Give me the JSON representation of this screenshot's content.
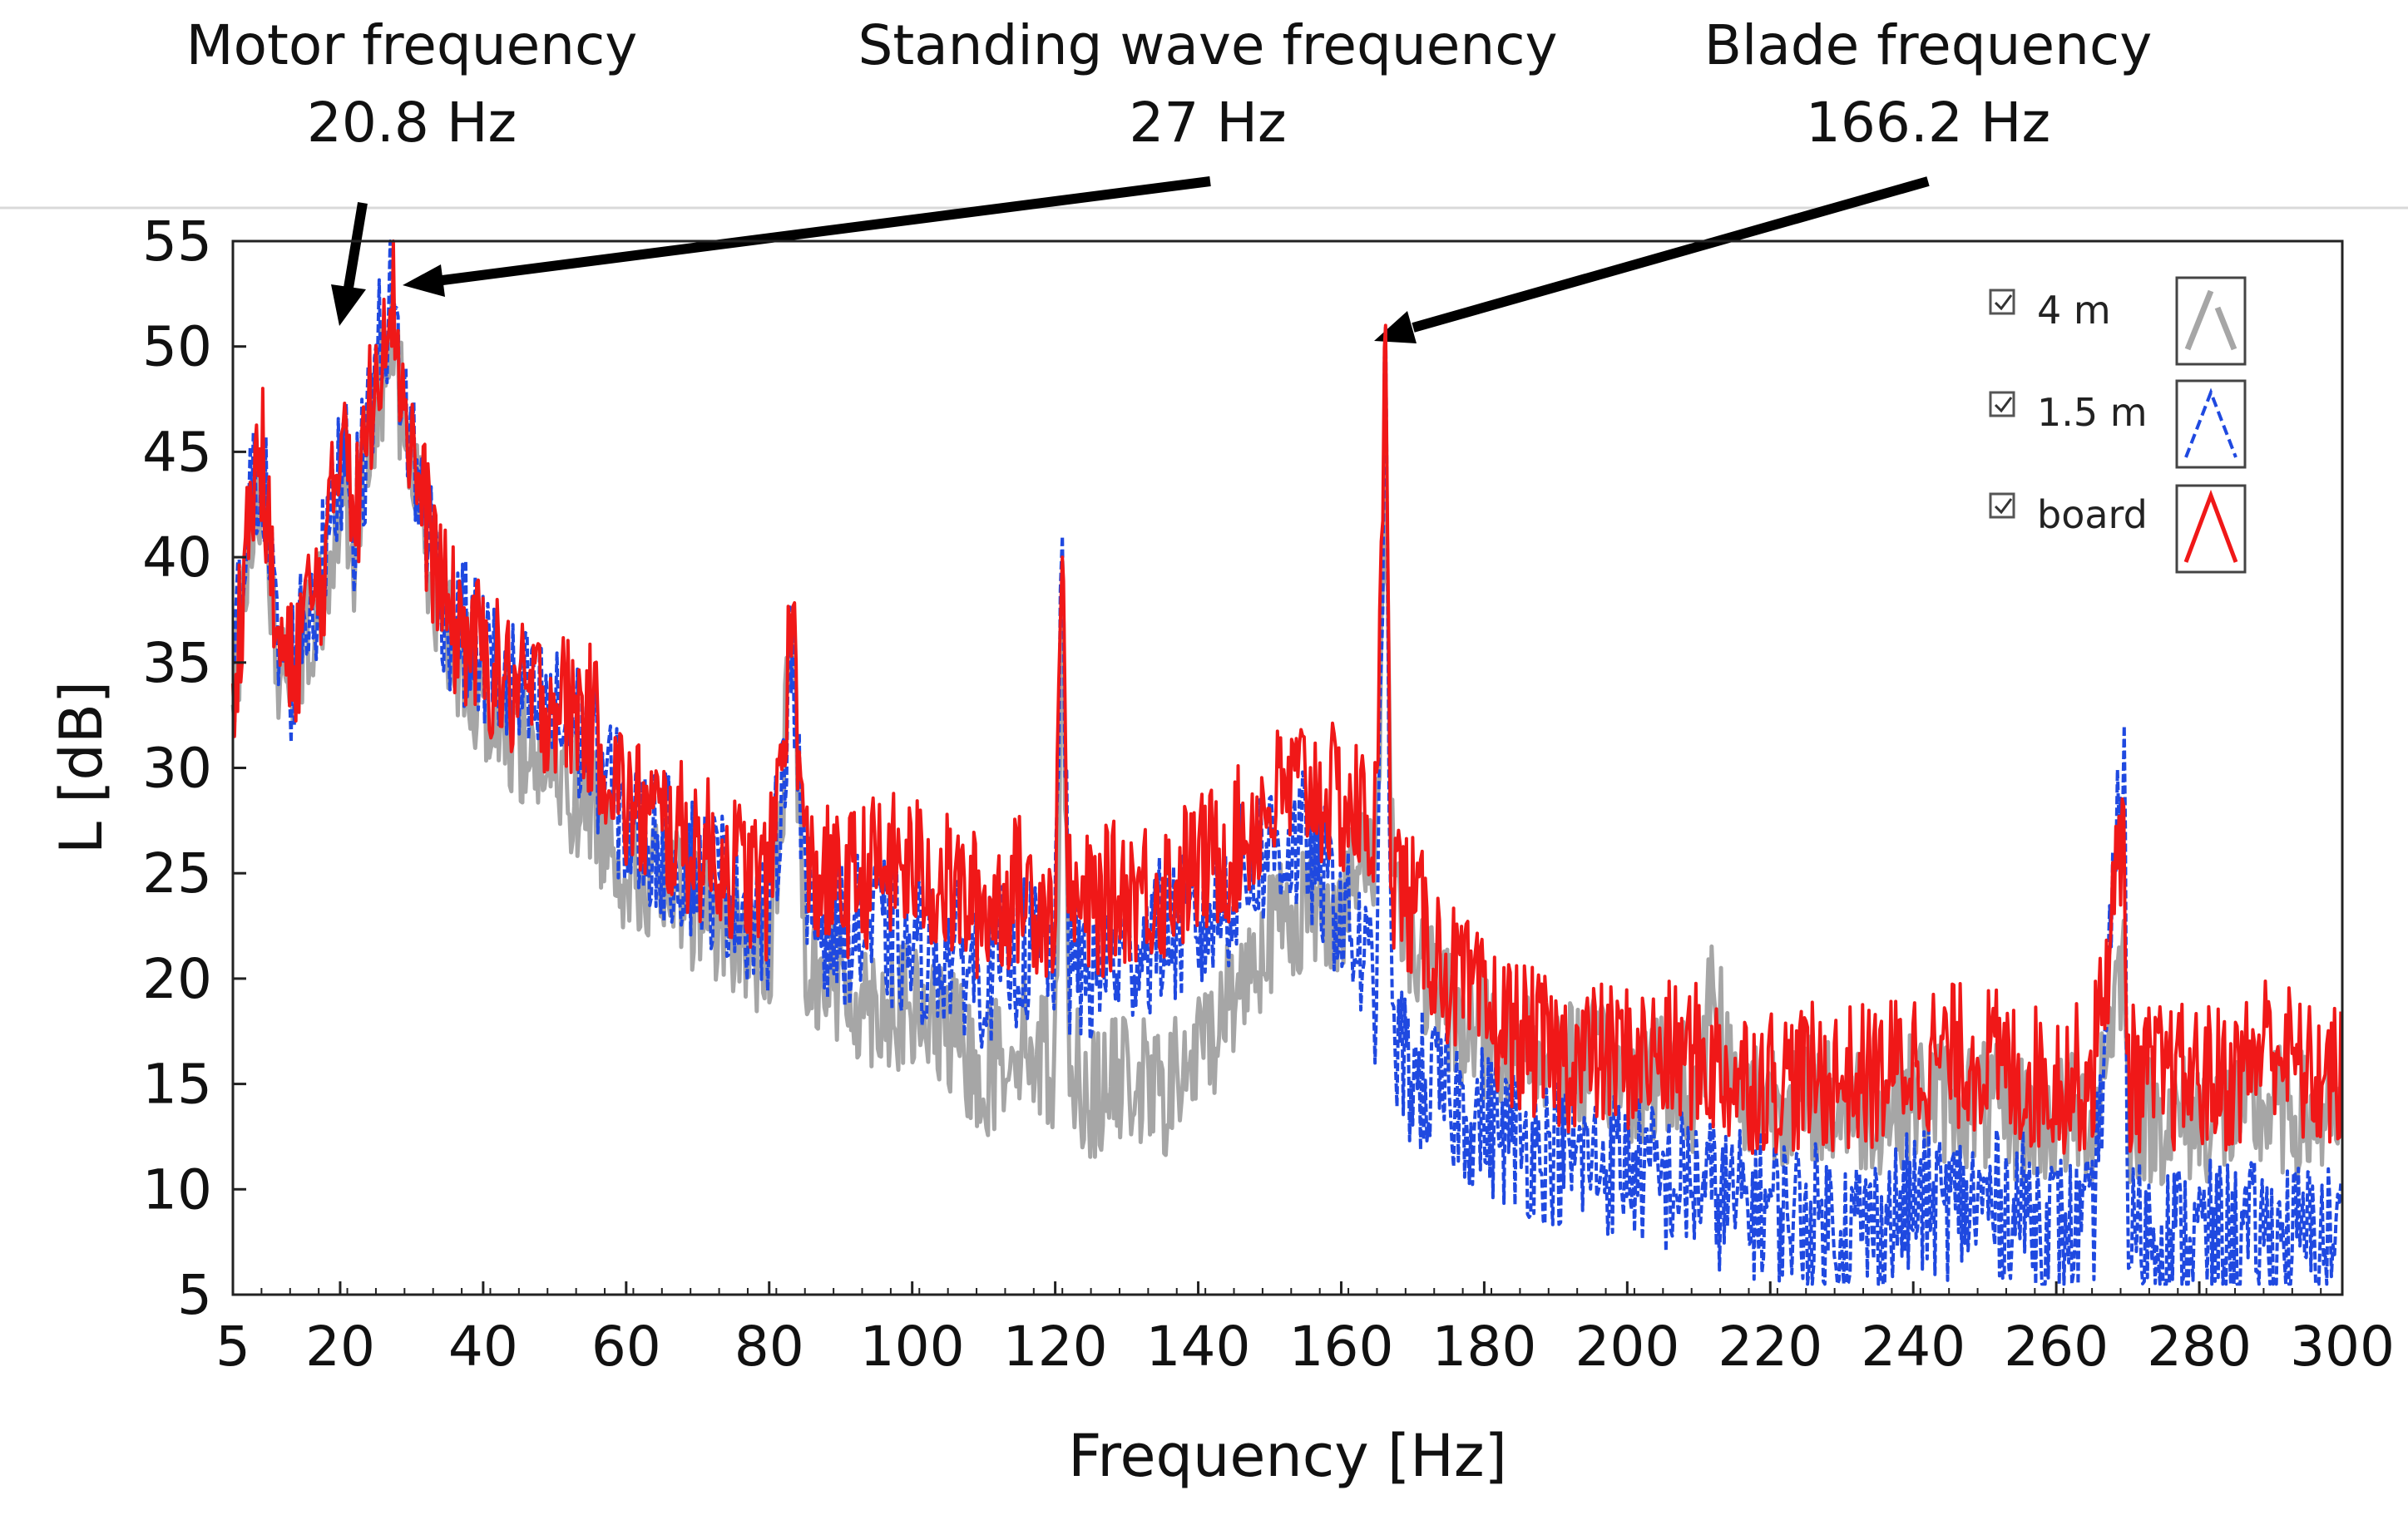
{
  "chart_data": {
    "type": "line",
    "title": "",
    "xlabel": "Frequency [Hz]",
    "ylabel": "L [dB]",
    "xlim": [
      5,
      300
    ],
    "ylim": [
      5,
      55
    ],
    "x_ticks": [
      5,
      20,
      40,
      60,
      80,
      100,
      120,
      140,
      160,
      180,
      200,
      220,
      240,
      260,
      280,
      300
    ],
    "y_ticks": [
      5,
      10,
      15,
      20,
      25,
      30,
      35,
      40,
      45,
      50,
      55
    ],
    "grid": false,
    "legend_position": "top-right",
    "series": [
      {
        "name": "4 m",
        "color": "#a6a6a6",
        "style": "solid",
        "points": [
          [
            5,
            33
          ],
          [
            7,
            41
          ],
          [
            9,
            45
          ],
          [
            11,
            36
          ],
          [
            13,
            34
          ],
          [
            15,
            37
          ],
          [
            17,
            38
          ],
          [
            19,
            42
          ],
          [
            20.8,
            44
          ],
          [
            22,
            41
          ],
          [
            25,
            48
          ],
          [
            27,
            51
          ],
          [
            29,
            47
          ],
          [
            31,
            43
          ],
          [
            35,
            37
          ],
          [
            40,
            34
          ],
          [
            45,
            32
          ],
          [
            50,
            30
          ],
          [
            55,
            29
          ],
          [
            60,
            26
          ],
          [
            65,
            25
          ],
          [
            70,
            24
          ],
          [
            75,
            23
          ],
          [
            80,
            21
          ],
          [
            83.3,
            37
          ],
          [
            85,
            22
          ],
          [
            90,
            20
          ],
          [
            95,
            19.5
          ],
          [
            100,
            19
          ],
          [
            105,
            18
          ],
          [
            110,
            16
          ],
          [
            115,
            18
          ],
          [
            120,
            16.5
          ],
          [
            121,
            38
          ],
          [
            122,
            17
          ],
          [
            125,
            15
          ],
          [
            130,
            16
          ],
          [
            135,
            15
          ],
          [
            140,
            17
          ],
          [
            145,
            20
          ],
          [
            150,
            23
          ],
          [
            155,
            24
          ],
          [
            160,
            24
          ],
          [
            165,
            27
          ],
          [
            166.2,
            45
          ],
          [
            167,
            27
          ],
          [
            170,
            22
          ],
          [
            175,
            19
          ],
          [
            180,
            18
          ],
          [
            185,
            17.5
          ],
          [
            190,
            17
          ],
          [
            195,
            16.5
          ],
          [
            200,
            16
          ],
          [
            205,
            16
          ],
          [
            210,
            15.5
          ],
          [
            212,
            21
          ],
          [
            215,
            15
          ],
          [
            220,
            15
          ],
          [
            225,
            15
          ],
          [
            230,
            14.5
          ],
          [
            235,
            14.5
          ],
          [
            240,
            15
          ],
          [
            245,
            15
          ],
          [
            250,
            14.5
          ],
          [
            255,
            14
          ],
          [
            260,
            14
          ],
          [
            265,
            14
          ],
          [
            269.5,
            22
          ],
          [
            270,
            14
          ],
          [
            275,
            14
          ],
          [
            280,
            14
          ],
          [
            285,
            14
          ],
          [
            290,
            14.5
          ],
          [
            295,
            14
          ],
          [
            300,
            14
          ]
        ]
      },
      {
        "name": "1.5 m",
        "color": "#1f49e0",
        "style": "dashed",
        "points": [
          [
            5,
            35
          ],
          [
            7,
            42
          ],
          [
            9,
            46
          ],
          [
            11,
            37
          ],
          [
            13,
            35
          ],
          [
            15,
            38
          ],
          [
            17,
            39
          ],
          [
            19,
            43
          ],
          [
            20.8,
            47
          ],
          [
            22,
            42
          ],
          [
            25,
            50
          ],
          [
            27,
            53
          ],
          [
            29,
            48
          ],
          [
            31,
            44
          ],
          [
            35,
            38
          ],
          [
            40,
            36
          ],
          [
            45,
            34
          ],
          [
            50,
            33
          ],
          [
            55,
            32
          ],
          [
            60,
            28
          ],
          [
            65,
            27
          ],
          [
            70,
            26
          ],
          [
            75,
            25
          ],
          [
            80,
            23
          ],
          [
            83.3,
            37
          ],
          [
            85,
            24
          ],
          [
            90,
            23
          ],
          [
            95,
            23
          ],
          [
            100,
            22
          ],
          [
            105,
            22
          ],
          [
            110,
            21
          ],
          [
            115,
            22
          ],
          [
            120,
            22
          ],
          [
            121,
            41
          ],
          [
            122,
            21
          ],
          [
            125,
            21
          ],
          [
            130,
            22
          ],
          [
            135,
            23
          ],
          [
            140,
            23
          ],
          [
            145,
            25
          ],
          [
            150,
            27
          ],
          [
            155,
            27
          ],
          [
            160,
            24
          ],
          [
            165,
            20
          ],
          [
            166.2,
            51
          ],
          [
            167,
            18
          ],
          [
            170,
            16
          ],
          [
            175,
            15
          ],
          [
            180,
            14
          ],
          [
            185,
            13
          ],
          [
            190,
            12.5
          ],
          [
            195,
            12
          ],
          [
            200,
            12
          ],
          [
            205,
            11
          ],
          [
            210,
            11
          ],
          [
            215,
            10
          ],
          [
            220,
            10
          ],
          [
            225,
            9.5
          ],
          [
            230,
            9
          ],
          [
            235,
            9
          ],
          [
            240,
            10
          ],
          [
            245,
            10
          ],
          [
            250,
            10
          ],
          [
            255,
            10
          ],
          [
            260,
            9
          ],
          [
            265,
            8.5
          ],
          [
            269.5,
            32
          ],
          [
            270,
            9
          ],
          [
            275,
            8.5
          ],
          [
            280,
            8.5
          ],
          [
            285,
            8.5
          ],
          [
            290,
            8.5
          ],
          [
            295,
            8.5
          ],
          [
            300,
            8.5
          ]
        ]
      },
      {
        "name": "board",
        "color": "#f01818",
        "style": "solid",
        "points": [
          [
            5,
            34
          ],
          [
            7,
            42
          ],
          [
            9,
            46
          ],
          [
            11,
            37
          ],
          [
            13,
            35
          ],
          [
            15,
            38
          ],
          [
            17,
            39
          ],
          [
            19,
            43
          ],
          [
            20.8,
            49
          ],
          [
            22,
            42
          ],
          [
            25,
            50
          ],
          [
            27,
            54
          ],
          [
            29,
            48
          ],
          [
            31,
            44
          ],
          [
            35,
            38
          ],
          [
            40,
            36
          ],
          [
            45,
            34
          ],
          [
            50,
            34
          ],
          [
            55,
            33
          ],
          [
            60,
            29
          ],
          [
            65,
            28
          ],
          [
            70,
            27
          ],
          [
            75,
            26
          ],
          [
            80,
            25
          ],
          [
            83.3,
            38
          ],
          [
            85,
            26
          ],
          [
            90,
            25
          ],
          [
            95,
            26
          ],
          [
            100,
            26
          ],
          [
            105,
            25
          ],
          [
            110,
            24
          ],
          [
            115,
            25
          ],
          [
            120,
            24
          ],
          [
            121,
            40
          ],
          [
            122,
            24
          ],
          [
            125,
            24
          ],
          [
            130,
            25
          ],
          [
            135,
            25
          ],
          [
            140,
            26
          ],
          [
            145,
            27
          ],
          [
            150,
            29
          ],
          [
            155,
            30
          ],
          [
            160,
            29
          ],
          [
            165,
            28
          ],
          [
            166.2,
            51
          ],
          [
            167,
            26
          ],
          [
            170,
            24
          ],
          [
            175,
            21
          ],
          [
            180,
            19
          ],
          [
            185,
            18
          ],
          [
            190,
            17
          ],
          [
            195,
            17
          ],
          [
            200,
            17
          ],
          [
            205,
            17
          ],
          [
            210,
            17
          ],
          [
            215,
            16
          ],
          [
            220,
            16
          ],
          [
            225,
            16
          ],
          [
            230,
            16
          ],
          [
            235,
            16
          ],
          [
            240,
            17
          ],
          [
            245,
            17
          ],
          [
            250,
            17
          ],
          [
            255,
            16
          ],
          [
            260,
            16
          ],
          [
            265,
            16
          ],
          [
            269.5,
            28
          ],
          [
            270,
            16
          ],
          [
            275,
            16
          ],
          [
            280,
            16
          ],
          [
            285,
            16
          ],
          [
            290,
            18
          ],
          [
            295,
            16
          ],
          [
            300,
            16
          ]
        ]
      }
    ],
    "annotations": [
      {
        "line1": "Motor frequency",
        "line2": "20.8 Hz",
        "target_x": 20.8,
        "target_y": 49.5
      },
      {
        "line1": "Standing wave frequency",
        "line2": "27 Hz",
        "target_x": 27,
        "target_y": 54
      },
      {
        "line1": "Blade frequency",
        "line2": "166.2 Hz",
        "target_x": 166.2,
        "target_y": 51
      }
    ],
    "legend": [
      {
        "label": "4 m",
        "checked": true
      },
      {
        "label": "1.5 m",
        "checked": true
      },
      {
        "label": "board",
        "checked": true
      }
    ]
  }
}
